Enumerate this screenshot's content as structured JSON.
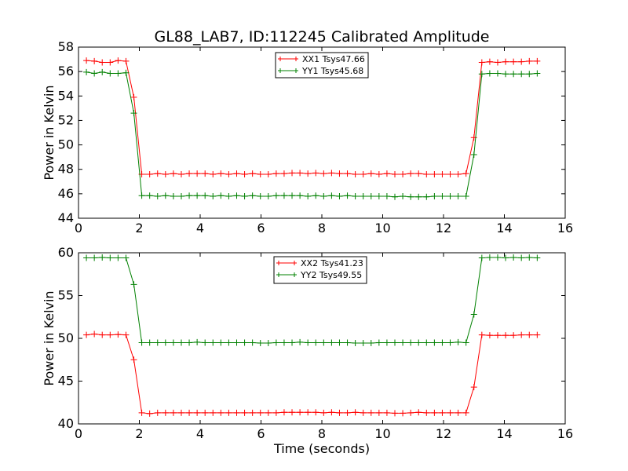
{
  "title": "GL88_LAB7, ID:112245 Calibrated Amplitude",
  "chart_data": [
    {
      "type": "line",
      "ylabel": "Power in Kelvin",
      "xlabel": "",
      "xlim": [
        0,
        16
      ],
      "ylim": [
        44,
        58
      ],
      "xticks": [
        "0",
        "2",
        "4",
        "6",
        "8",
        "10",
        "12",
        "14",
        "16"
      ],
      "yticks": [
        "44",
        "46",
        "48",
        "50",
        "52",
        "54",
        "56",
        "58"
      ],
      "legend_position": "top-center",
      "x": [
        0.26,
        0.52,
        0.78,
        1.04,
        1.3,
        1.56,
        1.82,
        2.08,
        2.34,
        2.6,
        2.86,
        3.12,
        3.38,
        3.64,
        3.9,
        4.16,
        4.42,
        4.68,
        4.94,
        5.2,
        5.46,
        5.72,
        5.98,
        6.24,
        6.5,
        6.76,
        7.02,
        7.28,
        7.54,
        7.8,
        8.06,
        8.32,
        8.58,
        8.84,
        9.1,
        9.36,
        9.62,
        9.88,
        10.14,
        10.4,
        10.66,
        10.92,
        11.18,
        11.44,
        11.7,
        11.96,
        12.22,
        12.48,
        12.74,
        13.0,
        13.26,
        13.52,
        13.78,
        14.04,
        14.3,
        14.56,
        14.82,
        15.08
      ],
      "series": [
        {
          "name": "XX1 Tsys47.66",
          "color": "#ff0000",
          "values": [
            56.9,
            56.85,
            56.75,
            56.75,
            56.9,
            56.85,
            53.9,
            47.6,
            47.6,
            47.65,
            47.6,
            47.65,
            47.6,
            47.65,
            47.65,
            47.65,
            47.6,
            47.65,
            47.6,
            47.65,
            47.6,
            47.65,
            47.6,
            47.6,
            47.65,
            47.65,
            47.7,
            47.7,
            47.65,
            47.7,
            47.65,
            47.7,
            47.65,
            47.65,
            47.6,
            47.6,
            47.65,
            47.6,
            47.65,
            47.6,
            47.6,
            47.65,
            47.65,
            47.6,
            47.6,
            47.6,
            47.6,
            47.6,
            47.65,
            50.6,
            56.75,
            56.8,
            56.75,
            56.8,
            56.8,
            56.8,
            56.85,
            56.85
          ]
        },
        {
          "name": "YY1 Tsys45.68",
          "color": "#008000",
          "values": [
            55.95,
            55.85,
            55.95,
            55.85,
            55.85,
            55.9,
            52.6,
            45.85,
            45.85,
            45.8,
            45.85,
            45.8,
            45.8,
            45.85,
            45.85,
            45.85,
            45.8,
            45.85,
            45.8,
            45.85,
            45.8,
            45.85,
            45.8,
            45.8,
            45.85,
            45.85,
            45.85,
            45.85,
            45.8,
            45.85,
            45.8,
            45.85,
            45.8,
            45.85,
            45.8,
            45.8,
            45.8,
            45.8,
            45.8,
            45.75,
            45.8,
            45.75,
            45.75,
            45.75,
            45.8,
            45.8,
            45.8,
            45.8,
            45.8,
            49.2,
            55.8,
            55.85,
            55.85,
            55.8,
            55.8,
            55.8,
            55.8,
            55.85
          ]
        }
      ]
    },
    {
      "type": "line",
      "ylabel": "Power in Kelvin",
      "xlabel": "Time (seconds)",
      "xlim": [
        0,
        16
      ],
      "ylim": [
        40,
        60
      ],
      "xticks": [
        "0",
        "2",
        "4",
        "6",
        "8",
        "10",
        "12",
        "14",
        "16"
      ],
      "yticks": [
        "40",
        "45",
        "50",
        "55",
        "60"
      ],
      "legend_position": "top-center",
      "x": [
        0.26,
        0.52,
        0.78,
        1.04,
        1.3,
        1.56,
        1.82,
        2.08,
        2.34,
        2.6,
        2.86,
        3.12,
        3.38,
        3.64,
        3.9,
        4.16,
        4.42,
        4.68,
        4.94,
        5.2,
        5.46,
        5.72,
        5.98,
        6.24,
        6.5,
        6.76,
        7.02,
        7.28,
        7.54,
        7.8,
        8.06,
        8.32,
        8.58,
        8.84,
        9.1,
        9.36,
        9.62,
        9.88,
        10.14,
        10.4,
        10.66,
        10.92,
        11.18,
        11.44,
        11.7,
        11.96,
        12.22,
        12.48,
        12.74,
        13.0,
        13.26,
        13.52,
        13.78,
        14.04,
        14.3,
        14.56,
        14.82,
        15.08
      ],
      "series": [
        {
          "name": "XX2 Tsys41.23",
          "color": "#ff0000",
          "values": [
            50.4,
            50.5,
            50.4,
            50.4,
            50.45,
            50.4,
            47.5,
            41.3,
            41.2,
            41.3,
            41.3,
            41.3,
            41.3,
            41.3,
            41.3,
            41.3,
            41.3,
            41.3,
            41.3,
            41.3,
            41.3,
            41.3,
            41.3,
            41.3,
            41.3,
            41.35,
            41.35,
            41.35,
            41.35,
            41.35,
            41.3,
            41.35,
            41.3,
            41.3,
            41.35,
            41.3,
            41.3,
            41.3,
            41.3,
            41.25,
            41.25,
            41.3,
            41.35,
            41.3,
            41.3,
            41.3,
            41.3,
            41.3,
            41.3,
            44.3,
            50.4,
            50.35,
            50.35,
            50.35,
            50.35,
            50.4,
            50.4,
            50.4
          ]
        },
        {
          "name": "YY2 Tsys49.55",
          "color": "#008000",
          "values": [
            59.4,
            59.4,
            59.45,
            59.4,
            59.4,
            59.4,
            56.3,
            49.5,
            49.5,
            49.5,
            49.5,
            49.5,
            49.5,
            49.5,
            49.55,
            49.5,
            49.5,
            49.5,
            49.5,
            49.5,
            49.5,
            49.5,
            49.45,
            49.45,
            49.5,
            49.5,
            49.5,
            49.55,
            49.5,
            49.5,
            49.5,
            49.5,
            49.5,
            49.5,
            49.45,
            49.45,
            49.45,
            49.5,
            49.5,
            49.5,
            49.5,
            49.5,
            49.5,
            49.5,
            49.5,
            49.5,
            49.5,
            49.55,
            49.5,
            52.8,
            59.4,
            59.45,
            59.45,
            59.4,
            59.45,
            59.4,
            59.45,
            59.4
          ]
        }
      ]
    }
  ]
}
